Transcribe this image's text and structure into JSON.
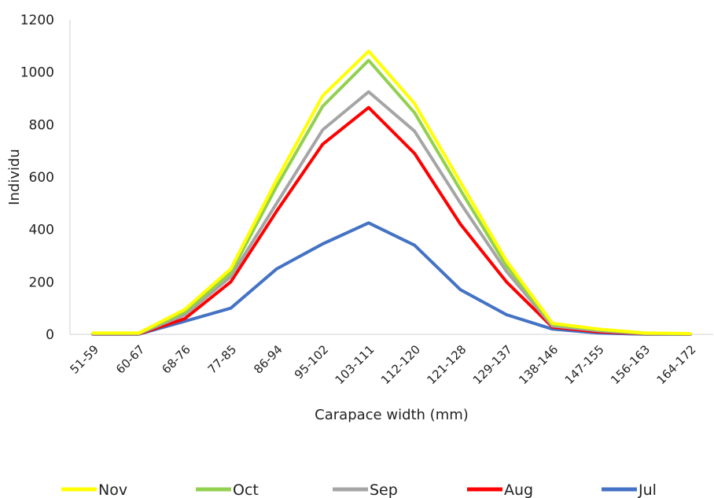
{
  "chart_data": {
    "type": "line",
    "title": "",
    "xlabel": "Carapace width (mm)",
    "ylabel": "Individu",
    "ylim": [
      0,
      1200
    ],
    "yticks": [
      0,
      200,
      400,
      600,
      800,
      1000,
      1200
    ],
    "grid": false,
    "legend_position": "bottom",
    "categories": [
      "51-59",
      "60-67",
      "68-76",
      "77-85",
      "86-94",
      "95-102",
      "103-111",
      "112-120",
      "121-128",
      "129-137",
      "138-146",
      "147-155",
      "156-163",
      "164-172"
    ],
    "series": [
      {
        "name": "Nov",
        "color": "#FFFF00",
        "values": [
          5,
          5,
          95,
          250,
          590,
          910,
          1080,
          880,
          580,
          280,
          42,
          20,
          5,
          3
        ]
      },
      {
        "name": "Oct",
        "color": "#92D050",
        "values": [
          4,
          4,
          85,
          235,
          565,
          870,
          1045,
          845,
          550,
          260,
          38,
          18,
          4,
          2
        ]
      },
      {
        "name": "Sep",
        "color": "#A5A5A5",
        "values": [
          3,
          3,
          75,
          220,
          500,
          780,
          925,
          775,
          500,
          240,
          32,
          14,
          3,
          1
        ]
      },
      {
        "name": "Aug",
        "color": "#FF0000",
        "values": [
          2,
          2,
          60,
          200,
          470,
          725,
          865,
          690,
          420,
          200,
          28,
          10,
          2,
          1
        ]
      },
      {
        "name": "Jul",
        "color": "#4472C4",
        "values": [
          1,
          1,
          50,
          100,
          250,
          345,
          425,
          340,
          170,
          75,
          20,
          5,
          1,
          0
        ]
      }
    ]
  }
}
